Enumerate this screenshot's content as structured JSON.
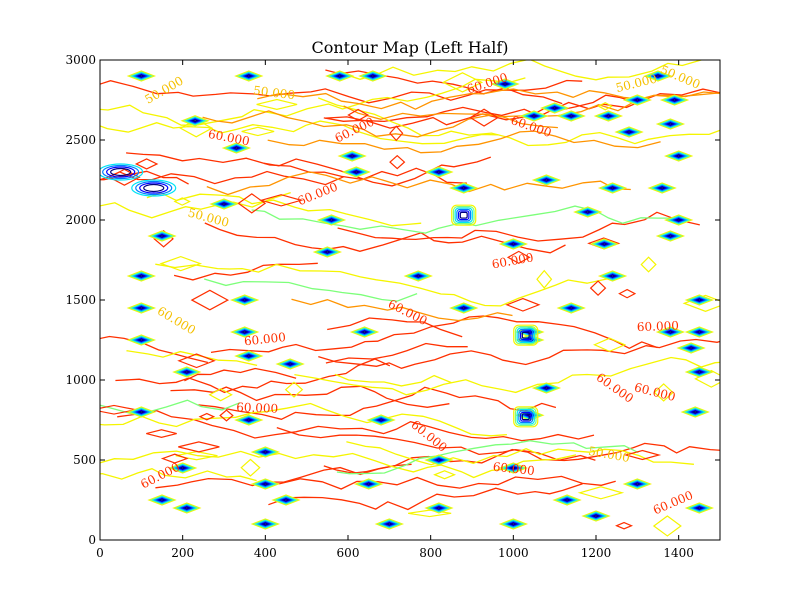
{
  "chart_data": {
    "type": "contour",
    "title": "Contour Map (Left Half)",
    "xlabel": "",
    "ylabel": "",
    "xlim": [
      0,
      1500
    ],
    "ylim": [
      0,
      3000
    ],
    "xticks": [
      0,
      200,
      400,
      600,
      800,
      1000,
      1200,
      1400
    ],
    "yticks": [
      0,
      500,
      1000,
      1500,
      2000,
      2500,
      3000
    ],
    "levels": [
      {
        "name": "level-1",
        "color": "#00007f"
      },
      {
        "name": "level-2",
        "color": "#0000ff"
      },
      {
        "name": "level-3",
        "color": "#007fff"
      },
      {
        "name": "level-4",
        "color": "#00e5f5"
      },
      {
        "name": "level-5",
        "color": "#7dff7a"
      },
      {
        "name": "level-6",
        "color": "#f5f500"
      },
      {
        "name": "level-7",
        "color": "#ff9400"
      },
      {
        "name": "level-8",
        "color": "#ff3000"
      },
      {
        "name": "level-9",
        "color": "#7f0000"
      }
    ],
    "contour_labels": [
      {
        "text": "50.000",
        "x": 160,
        "y": 2790,
        "color": "#f5c000"
      },
      {
        "text": "50.000",
        "x": 420,
        "y": 2770,
        "color": "#f5c000"
      },
      {
        "text": "60.000",
        "x": 620,
        "y": 2540,
        "color": "#ff3000"
      },
      {
        "text": "60.000",
        "x": 310,
        "y": 2490,
        "color": "#ff3000"
      },
      {
        "text": "60.000",
        "x": 530,
        "y": 2140,
        "color": "#ff3000"
      },
      {
        "text": "50.000",
        "x": 260,
        "y": 1990,
        "color": "#f5c000"
      },
      {
        "text": "60.000",
        "x": 940,
        "y": 2830,
        "color": "#ff3000"
      },
      {
        "text": "60.000",
        "x": 1040,
        "y": 2560,
        "color": "#ff3000"
      },
      {
        "text": "50.000",
        "x": 1300,
        "y": 2830,
        "color": "#f5c000"
      },
      {
        "text": "50.000",
        "x": 1400,
        "y": 2870,
        "color": "#f5c000"
      },
      {
        "text": "60.000",
        "x": 1000,
        "y": 1720,
        "color": "#ff3000"
      },
      {
        "text": "60.000",
        "x": 740,
        "y": 1400,
        "color": "#ff3000"
      },
      {
        "text": "60.000",
        "x": 400,
        "y": 1230,
        "color": "#ff3000"
      },
      {
        "text": "60.000",
        "x": 180,
        "y": 1350,
        "color": "#f5c000"
      },
      {
        "text": "60.000",
        "x": 1350,
        "y": 1310,
        "color": "#ff3000"
      },
      {
        "text": "60.000",
        "x": 1240,
        "y": 930,
        "color": "#ff3000"
      },
      {
        "text": "60.000",
        "x": 380,
        "y": 800,
        "color": "#ff3000"
      },
      {
        "text": "60.000",
        "x": 790,
        "y": 630,
        "color": "#ff3000"
      },
      {
        "text": "60.000",
        "x": 1000,
        "y": 420,
        "color": "#ff3000"
      },
      {
        "text": "60.000",
        "x": 150,
        "y": 380,
        "color": "#ff3000"
      },
      {
        "text": "50.000",
        "x": 1230,
        "y": 510,
        "color": "#f5c000"
      },
      {
        "text": "60.000",
        "x": 1390,
        "y": 210,
        "color": "#ff3000"
      },
      {
        "text": "60.000",
        "x": 1340,
        "y": 900,
        "color": "#ff3000"
      }
    ],
    "peaks": [
      {
        "x": 100,
        "y": 2900
      },
      {
        "x": 230,
        "y": 2620
      },
      {
        "x": 330,
        "y": 2450
      },
      {
        "x": 300,
        "y": 2100
      },
      {
        "x": 150,
        "y": 1900
      },
      {
        "x": 100,
        "y": 1650
      },
      {
        "x": 100,
        "y": 1450
      },
      {
        "x": 100,
        "y": 1250
      },
      {
        "x": 350,
        "y": 1500
      },
      {
        "x": 350,
        "y": 1300
      },
      {
        "x": 360,
        "y": 1150
      },
      {
        "x": 210,
        "y": 1050
      },
      {
        "x": 100,
        "y": 800
      },
      {
        "x": 360,
        "y": 750
      },
      {
        "x": 400,
        "y": 550
      },
      {
        "x": 200,
        "y": 450
      },
      {
        "x": 150,
        "y": 250
      },
      {
        "x": 210,
        "y": 200
      },
      {
        "x": 400,
        "y": 350
      },
      {
        "x": 450,
        "y": 250
      },
      {
        "x": 400,
        "y": 100
      },
      {
        "x": 460,
        "y": 1100
      },
      {
        "x": 550,
        "y": 1800
      },
      {
        "x": 610,
        "y": 2400
      },
      {
        "x": 620,
        "y": 2300
      },
      {
        "x": 560,
        "y": 2000
      },
      {
        "x": 360,
        "y": 2900
      },
      {
        "x": 580,
        "y": 2900
      },
      {
        "x": 660,
        "y": 2900
      },
      {
        "x": 640,
        "y": 1300
      },
      {
        "x": 680,
        "y": 750
      },
      {
        "x": 650,
        "y": 350
      },
      {
        "x": 700,
        "y": 100
      },
      {
        "x": 770,
        "y": 1650
      },
      {
        "x": 820,
        "y": 2300
      },
      {
        "x": 880,
        "y": 2200
      },
      {
        "x": 880,
        "y": 1450
      },
      {
        "x": 820,
        "y": 500
      },
      {
        "x": 820,
        "y": 200
      },
      {
        "x": 980,
        "y": 2850
      },
      {
        "x": 1000,
        "y": 1850
      },
      {
        "x": 1040,
        "y": 1300
      },
      {
        "x": 1040,
        "y": 1250
      },
      {
        "x": 1040,
        "y": 780
      },
      {
        "x": 1080,
        "y": 950
      },
      {
        "x": 1000,
        "y": 450
      },
      {
        "x": 1000,
        "y": 100
      },
      {
        "x": 1050,
        "y": 2650
      },
      {
        "x": 1100,
        "y": 2700
      },
      {
        "x": 1140,
        "y": 2650
      },
      {
        "x": 1080,
        "y": 2250
      },
      {
        "x": 1180,
        "y": 2050
      },
      {
        "x": 1220,
        "y": 1850
      },
      {
        "x": 1240,
        "y": 2200
      },
      {
        "x": 1240,
        "y": 1650
      },
      {
        "x": 1140,
        "y": 1450
      },
      {
        "x": 1130,
        "y": 250
      },
      {
        "x": 1200,
        "y": 150
      },
      {
        "x": 1300,
        "y": 350
      },
      {
        "x": 1350,
        "y": 2900
      },
      {
        "x": 1300,
        "y": 2750
      },
      {
        "x": 1390,
        "y": 2750
      },
      {
        "x": 1400,
        "y": 2400
      },
      {
        "x": 1380,
        "y": 2600
      },
      {
        "x": 1360,
        "y": 2200
      },
      {
        "x": 1400,
        "y": 2000
      },
      {
        "x": 1380,
        "y": 1900
      },
      {
        "x": 1450,
        "y": 1500
      },
      {
        "x": 1380,
        "y": 1300
      },
      {
        "x": 1450,
        "y": 1300
      },
      {
        "x": 1430,
        "y": 1200
      },
      {
        "x": 1450,
        "y": 1050
      },
      {
        "x": 1440,
        "y": 800
      },
      {
        "x": 1450,
        "y": 200
      },
      {
        "x": 1280,
        "y": 2550
      },
      {
        "x": 1230,
        "y": 2650
      }
    ],
    "wide_peaks": [
      {
        "x": 880,
        "y": 2030
      },
      {
        "x": 1030,
        "y": 1280
      },
      {
        "x": 1030,
        "y": 770
      }
    ],
    "lows": [
      {
        "x": 50,
        "y": 2300
      },
      {
        "x": 130,
        "y": 2200
      }
    ]
  }
}
